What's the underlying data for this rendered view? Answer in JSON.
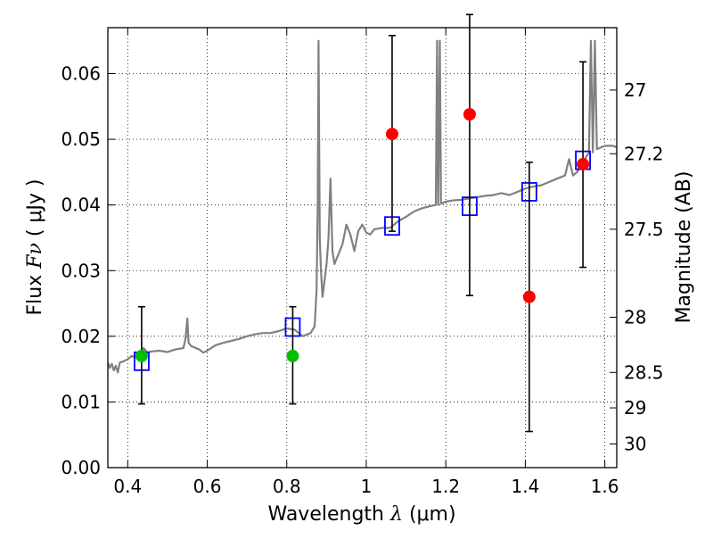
{
  "chart_data": {
    "type": "scatter",
    "xlabel_text": "Wavelength",
    "xlabel_math": "λ",
    "xlabel_unit": "(μm)",
    "ylabel_text": "Flux",
    "ylabel_math": "Fν",
    "ylabel_unit": "( μJy )",
    "y2label": "Magnitude (AB)",
    "xlim": [
      0.35,
      1.63
    ],
    "ylim": [
      0.0,
      0.067
    ],
    "xticks": [
      0.4,
      0.6,
      0.8,
      1.0,
      1.2,
      1.4,
      1.6
    ],
    "xtick_labels": [
      "0.4",
      "0.6",
      "0.8",
      "1",
      "1.2",
      "1.4",
      "1.6"
    ],
    "yticks": [
      0.0,
      0.01,
      0.02,
      0.03,
      0.04,
      0.05,
      0.06
    ],
    "ytick_labels": [
      "0.00",
      "0.01",
      "0.02",
      "0.03",
      "0.04",
      "0.05",
      "0.06"
    ],
    "y2_ticks": [
      {
        "label": "27",
        "flux": 0.0575
      },
      {
        "label": "27.2",
        "flux": 0.0478
      },
      {
        "label": "27.5",
        "flux": 0.0363
      },
      {
        "label": "28",
        "flux": 0.0229
      },
      {
        "label": "28.5",
        "flux": 0.0145
      },
      {
        "label": "29",
        "flux": 0.0091
      },
      {
        "label": "30",
        "flux": 0.0036
      }
    ],
    "grid": true,
    "colors": {
      "sed_line": "#808080",
      "model_box": "#0000ff",
      "detection": "#00c000",
      "nondetection": "#ff0000",
      "errorbar": "#000000"
    },
    "sed_model": [
      [
        0.35,
        0.016
      ],
      [
        0.355,
        0.0152
      ],
      [
        0.36,
        0.0158
      ],
      [
        0.365,
        0.0148
      ],
      [
        0.37,
        0.0155
      ],
      [
        0.375,
        0.0145
      ],
      [
        0.38,
        0.016
      ],
      [
        0.39,
        0.0162
      ],
      [
        0.4,
        0.0165
      ],
      [
        0.41,
        0.017
      ],
      [
        0.42,
        0.0168
      ],
      [
        0.43,
        0.0173
      ],
      [
        0.44,
        0.0182
      ],
      [
        0.45,
        0.0175
      ],
      [
        0.46,
        0.0177
      ],
      [
        0.48,
        0.0178
      ],
      [
        0.5,
        0.0176
      ],
      [
        0.52,
        0.018
      ],
      [
        0.54,
        0.0182
      ],
      [
        0.545,
        0.0195
      ],
      [
        0.55,
        0.0227
      ],
      [
        0.553,
        0.019
      ],
      [
        0.56,
        0.0185
      ],
      [
        0.58,
        0.018
      ],
      [
        0.59,
        0.0175
      ],
      [
        0.6,
        0.0178
      ],
      [
        0.62,
        0.0186
      ],
      [
        0.64,
        0.019
      ],
      [
        0.66,
        0.0193
      ],
      [
        0.68,
        0.0196
      ],
      [
        0.7,
        0.02
      ],
      [
        0.72,
        0.0203
      ],
      [
        0.74,
        0.0205
      ],
      [
        0.76,
        0.0205
      ],
      [
        0.78,
        0.0208
      ],
      [
        0.8,
        0.0212
      ],
      [
        0.82,
        0.021
      ],
      [
        0.84,
        0.02
      ],
      [
        0.86,
        0.0205
      ],
      [
        0.87,
        0.0215
      ],
      [
        0.875,
        0.027
      ],
      [
        0.878,
        0.04
      ],
      [
        0.88,
        0.065
      ],
      [
        0.883,
        0.035
      ],
      [
        0.886,
        0.03
      ],
      [
        0.89,
        0.026
      ],
      [
        0.9,
        0.031
      ],
      [
        0.905,
        0.035
      ],
      [
        0.91,
        0.044
      ],
      [
        0.915,
        0.033
      ],
      [
        0.92,
        0.031
      ],
      [
        0.94,
        0.034
      ],
      [
        0.95,
        0.037
      ],
      [
        0.96,
        0.0355
      ],
      [
        0.97,
        0.033
      ],
      [
        0.98,
        0.036
      ],
      [
        0.99,
        0.037
      ],
      [
        1.0,
        0.0358
      ],
      [
        1.01,
        0.0355
      ],
      [
        1.02,
        0.0363
      ],
      [
        1.04,
        0.0365
      ],
      [
        1.06,
        0.0365
      ],
      [
        1.08,
        0.0375
      ],
      [
        1.1,
        0.0382
      ],
      [
        1.12,
        0.039
      ],
      [
        1.14,
        0.0395
      ],
      [
        1.16,
        0.0398
      ],
      [
        1.175,
        0.04
      ],
      [
        1.178,
        0.065
      ],
      [
        1.181,
        0.04
      ],
      [
        1.185,
        0.065
      ],
      [
        1.188,
        0.0402
      ],
      [
        1.2,
        0.0405
      ],
      [
        1.22,
        0.0407
      ],
      [
        1.24,
        0.0408
      ],
      [
        1.26,
        0.041
      ],
      [
        1.28,
        0.0412
      ],
      [
        1.3,
        0.0414
      ],
      [
        1.32,
        0.0415
      ],
      [
        1.34,
        0.0418
      ],
      [
        1.36,
        0.0415
      ],
      [
        1.38,
        0.042
      ],
      [
        1.4,
        0.0425
      ],
      [
        1.42,
        0.0428
      ],
      [
        1.44,
        0.043
      ],
      [
        1.46,
        0.0435
      ],
      [
        1.48,
        0.044
      ],
      [
        1.5,
        0.0445
      ],
      [
        1.51,
        0.047
      ],
      [
        1.52,
        0.0445
      ],
      [
        1.53,
        0.045
      ],
      [
        1.54,
        0.046
      ],
      [
        1.55,
        0.047
      ],
      [
        1.56,
        0.048
      ],
      [
        1.565,
        0.065
      ],
      [
        1.57,
        0.048
      ],
      [
        1.575,
        0.065
      ],
      [
        1.58,
        0.0485
      ],
      [
        1.6,
        0.049
      ],
      [
        1.62,
        0.049
      ],
      [
        1.63,
        0.0488
      ]
    ],
    "model_points": [
      {
        "x": 0.435,
        "y": 0.0162
      },
      {
        "x": 0.815,
        "y": 0.0214
      },
      {
        "x": 1.065,
        "y": 0.0368
      },
      {
        "x": 1.26,
        "y": 0.0398
      },
      {
        "x": 1.41,
        "y": 0.042
      },
      {
        "x": 1.545,
        "y": 0.0468
      }
    ],
    "observed_points": [
      {
        "x": 0.435,
        "y": 0.017,
        "err_low": 0.0097,
        "err_high": 0.0245,
        "class": "detection"
      },
      {
        "x": 0.815,
        "y": 0.017,
        "err_low": 0.0097,
        "err_high": 0.0245,
        "class": "detection"
      },
      {
        "x": 1.065,
        "y": 0.0508,
        "err_low": 0.036,
        "err_high": 0.0658,
        "class": "nondetection"
      },
      {
        "x": 1.26,
        "y": 0.0538,
        "err_low": 0.0262,
        "err_high": 0.069,
        "class": "nondetection"
      },
      {
        "x": 1.41,
        "y": 0.026,
        "err_low": 0.0055,
        "err_high": 0.0465,
        "class": "nondetection"
      },
      {
        "x": 1.545,
        "y": 0.0462,
        "err_low": 0.0305,
        "err_high": 0.0618,
        "class": "nondetection"
      }
    ]
  }
}
